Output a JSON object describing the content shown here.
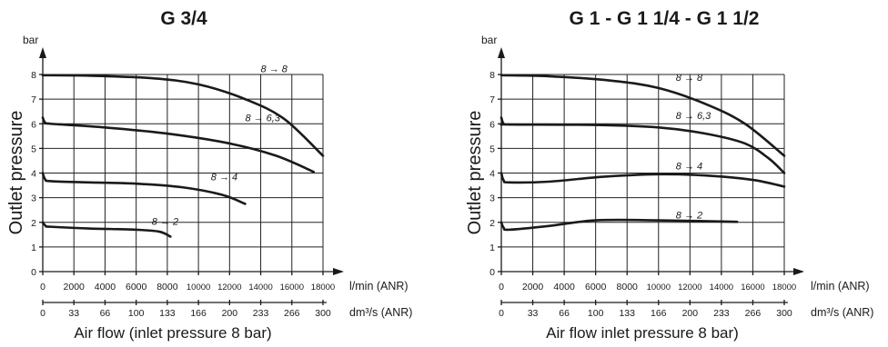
{
  "chart_data": [
    {
      "type": "line",
      "title": "G 3/4",
      "ylabel": "Outlet pressure",
      "xlabel": "Air flow (inlet pressure 8 bar)",
      "y_unit": "bar",
      "x_unit_primary": "l/min (ANR)",
      "x_unit_secondary": "dm³/s (ANR)",
      "xlim": [
        0,
        18000
      ],
      "ylim": [
        0,
        8
      ],
      "grid": true,
      "x_ticks": [
        "0",
        "2000",
        "4000",
        "6000",
        "8000",
        "10000",
        "12000",
        "14000",
        "16000",
        "18000"
      ],
      "x_ticks_secondary": [
        "0",
        "33",
        "66",
        "100",
        "133",
        "166",
        "200",
        "233",
        "266",
        "300"
      ],
      "y_ticks": [
        "0",
        "1",
        "2",
        "3",
        "4",
        "5",
        "6",
        "7",
        "8"
      ],
      "series": [
        {
          "name": "8 → 8",
          "label_at": [
            14000,
            8.1
          ],
          "points": [
            [
              0,
              7.97
            ],
            [
              3000,
              7.95
            ],
            [
              7000,
              7.85
            ],
            [
              10000,
              7.6
            ],
            [
              13000,
              7.0
            ],
            [
              15500,
              6.2
            ],
            [
              18000,
              4.7
            ]
          ]
        },
        {
          "name": "8 → 6,3",
          "label_at": [
            13000,
            6.1
          ],
          "points": [
            [
              0,
              6.25
            ],
            [
              150,
              6.05
            ],
            [
              500,
              6.0
            ],
            [
              4000,
              5.85
            ],
            [
              8000,
              5.6
            ],
            [
              12000,
              5.2
            ],
            [
              15000,
              4.7
            ],
            [
              17400,
              4.05
            ]
          ]
        },
        {
          "name": "8 → 4",
          "label_at": [
            10800,
            3.7
          ],
          "points": [
            [
              0,
              4.0
            ],
            [
              150,
              3.75
            ],
            [
              500,
              3.67
            ],
            [
              3000,
              3.62
            ],
            [
              6000,
              3.57
            ],
            [
              9000,
              3.42
            ],
            [
              11500,
              3.12
            ],
            [
              13000,
              2.75
            ]
          ]
        },
        {
          "name": "8 → 2",
          "label_at": [
            7000,
            1.9
          ],
          "points": [
            [
              0,
              2.0
            ],
            [
              200,
              1.85
            ],
            [
              500,
              1.82
            ],
            [
              3000,
              1.75
            ],
            [
              6000,
              1.7
            ],
            [
              7500,
              1.62
            ],
            [
              8200,
              1.42
            ]
          ]
        }
      ]
    },
    {
      "type": "line",
      "title": "G 1 - G 1 1/4 - G 1 1/2",
      "ylabel": "Outlet pressure",
      "xlabel": "Air flow inlet pressure 8 bar)",
      "y_unit": "bar",
      "x_unit_primary": "l/min (ANR)",
      "x_unit_secondary": "dm³/s (ANR)",
      "xlim": [
        0,
        18000
      ],
      "ylim": [
        0,
        8
      ],
      "grid": true,
      "x_ticks": [
        "0",
        "2000",
        "4000",
        "6000",
        "8000",
        "10000",
        "12000",
        "14000",
        "16000",
        "18000"
      ],
      "x_ticks_secondary": [
        "0",
        "33",
        "66",
        "100",
        "133",
        "166",
        "200",
        "233",
        "266",
        "300"
      ],
      "y_ticks": [
        "0",
        "1",
        "2",
        "3",
        "4",
        "5",
        "6",
        "7",
        "8"
      ],
      "series": [
        {
          "name": "8 → 8",
          "label_at": [
            11100,
            7.75
          ],
          "points": [
            [
              0,
              7.97
            ],
            [
              3000,
              7.93
            ],
            [
              7000,
              7.75
            ],
            [
              10000,
              7.45
            ],
            [
              13000,
              6.8
            ],
            [
              15500,
              6.0
            ],
            [
              18000,
              4.7
            ]
          ]
        },
        {
          "name": "8 → 6,3",
          "label_at": [
            11100,
            6.2
          ],
          "points": [
            [
              0,
              6.25
            ],
            [
              150,
              6.0
            ],
            [
              500,
              5.97
            ],
            [
              6000,
              5.95
            ],
            [
              10000,
              5.85
            ],
            [
              13000,
              5.6
            ],
            [
              15500,
              5.2
            ],
            [
              17000,
              4.6
            ],
            [
              18000,
              4.0
            ]
          ]
        },
        {
          "name": "8 → 4",
          "label_at": [
            11100,
            4.15
          ],
          "points": [
            [
              0,
              4.0
            ],
            [
              150,
              3.7
            ],
            [
              500,
              3.62
            ],
            [
              3000,
              3.65
            ],
            [
              6500,
              3.85
            ],
            [
              10000,
              3.95
            ],
            [
              13000,
              3.9
            ],
            [
              16000,
              3.72
            ],
            [
              18000,
              3.45
            ]
          ]
        },
        {
          "name": "8 → 2",
          "label_at": [
            11100,
            2.15
          ],
          "points": [
            [
              0,
              2.0
            ],
            [
              150,
              1.78
            ],
            [
              500,
              1.7
            ],
            [
              3000,
              1.85
            ],
            [
              6000,
              2.08
            ],
            [
              10000,
              2.08
            ],
            [
              15000,
              2.02
            ]
          ]
        }
      ]
    }
  ]
}
